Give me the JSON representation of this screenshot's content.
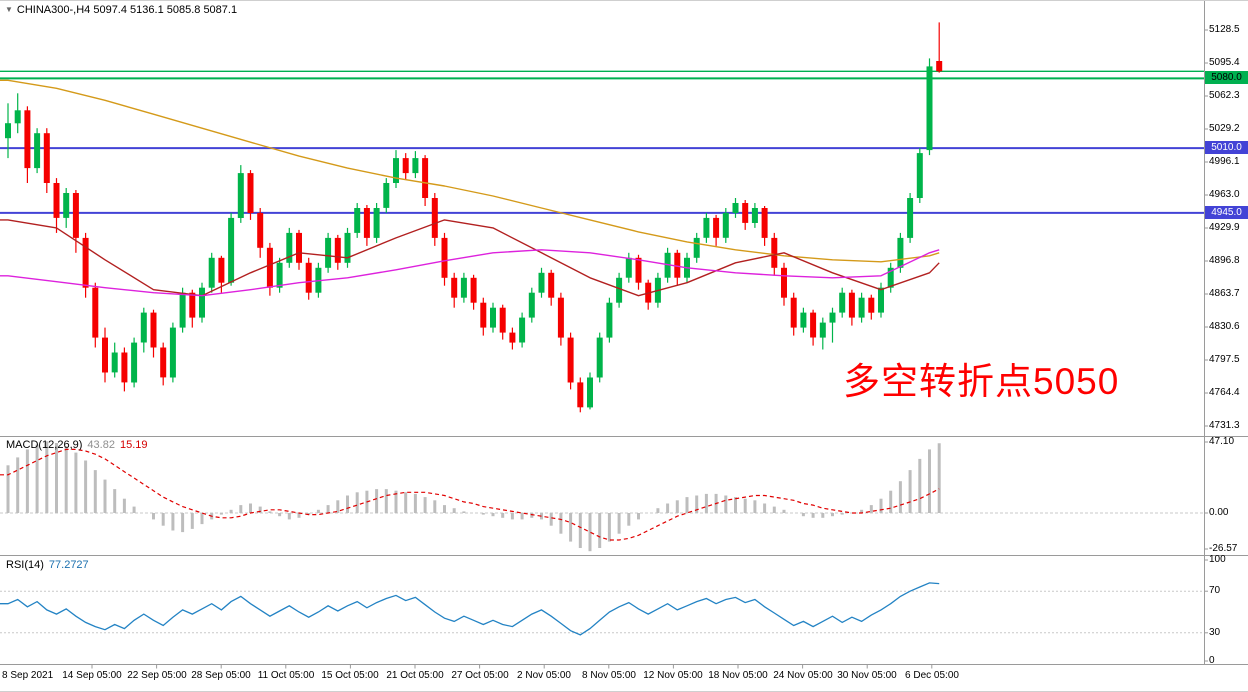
{
  "header": {
    "symbol_text": "CHINA300-,H4 5097.4 5136.1 5085.8 5087.1",
    "dropdown_glyph": "▼"
  },
  "annotation": {
    "text": "多空转折点5050",
    "color": "#ff0000"
  },
  "colors": {
    "up": "#00b44a",
    "down": "#f50000",
    "ma_long": "#d49a1a",
    "ma_mid": "#b22020",
    "ma_fast": "#dd22dd",
    "hline_green": "#00b050",
    "hline_blue": "#4343d6",
    "macd_hist": "#bdbdbd",
    "macd_signal": "#e00000",
    "rsi_line": "#2383c4",
    "grid": "#c8c8c8",
    "separator": "#9a9a9a"
  },
  "chart_data": [
    {
      "type": "candlestick",
      "symbol": "CHINA300-",
      "timeframe": "H4",
      "current_ohlc": {
        "open": 5097.4,
        "high": 5136.1,
        "low": 5085.8,
        "close": 5087.1
      },
      "y_axis_labels": [
        "5128.5",
        "5095.4",
        "5062.3",
        "5029.2",
        "4996.1",
        "4963.0",
        "4929.9",
        "4896.8",
        "4863.7",
        "4830.6",
        "4797.5",
        "4764.4",
        "4731.3"
      ],
      "x_axis_labels": [
        "8 Sep 2021",
        "14 Sep 05:00",
        "22 Sep 05:00",
        "28 Sep 05:00",
        "11 Oct 05:00",
        "15 Oct 05:00",
        "21 Oct 05:00",
        "27 Oct 05:00",
        "2 Nov 05:00",
        "8 Nov 05:00",
        "12 Nov 05:00",
        "18 Nov 05:00",
        "24 Nov 05:00",
        "30 Nov 05:00",
        "6 Dec 05:00"
      ],
      "horizontal_lines": [
        {
          "price": 5087.1,
          "color_key": "hline_green",
          "width": 1.4,
          "label": ""
        },
        {
          "price": 5080.0,
          "color_key": "hline_green",
          "width": 2,
          "label": "5080.0"
        },
        {
          "price": 5010.0,
          "color_key": "hline_blue",
          "width": 2,
          "label": "5010.0"
        },
        {
          "price": 4945.0,
          "color_key": "hline_blue",
          "width": 2,
          "label": "4945.0"
        }
      ],
      "candles": [
        [
          5020,
          5055,
          5000,
          5035
        ],
        [
          5035,
          5065,
          5025,
          5048
        ],
        [
          5048,
          5052,
          4975,
          4990
        ],
        [
          4990,
          5030,
          4985,
          5025
        ],
        [
          5025,
          5030,
          4965,
          4975
        ],
        [
          4975,
          4980,
          4925,
          4940
        ],
        [
          4940,
          4970,
          4930,
          4965
        ],
        [
          4965,
          4968,
          4905,
          4920
        ],
        [
          4920,
          4925,
          4860,
          4870
        ],
        [
          4870,
          4875,
          4810,
          4820
        ],
        [
          4820,
          4830,
          4775,
          4785
        ],
        [
          4785,
          4815,
          4780,
          4805
        ],
        [
          4805,
          4810,
          4766,
          4775
        ],
        [
          4775,
          4820,
          4770,
          4815
        ],
        [
          4815,
          4850,
          4805,
          4845
        ],
        [
          4845,
          4848,
          4800,
          4810
        ],
        [
          4810,
          4815,
          4772,
          4780
        ],
        [
          4780,
          4835,
          4775,
          4830
        ],
        [
          4830,
          4870,
          4825,
          4865
        ],
        [
          4865,
          4868,
          4830,
          4840
        ],
        [
          4840,
          4875,
          4835,
          4870
        ],
        [
          4870,
          4905,
          4865,
          4900
        ],
        [
          4900,
          4902,
          4865,
          4875
        ],
        [
          4875,
          4945,
          4872,
          4940
        ],
        [
          4940,
          4993,
          4935,
          4985
        ],
        [
          4985,
          4988,
          4938,
          4945
        ],
        [
          4945,
          4950,
          4900,
          4910
        ],
        [
          4910,
          4915,
          4862,
          4870
        ],
        [
          4870,
          4900,
          4865,
          4895
        ],
        [
          4895,
          4930,
          4890,
          4925
        ],
        [
          4925,
          4928,
          4888,
          4895
        ],
        [
          4895,
          4900,
          4858,
          4865
        ],
        [
          4865,
          4895,
          4860,
          4890
        ],
        [
          4890,
          4925,
          4885,
          4920
        ],
        [
          4920,
          4923,
          4888,
          4895
        ],
        [
          4895,
          4930,
          4890,
          4925
        ],
        [
          4925,
          4955,
          4920,
          4950
        ],
        [
          4950,
          4953,
          4912,
          4920
        ],
        [
          4920,
          4955,
          4915,
          4950
        ],
        [
          4950,
          4980,
          4945,
          4975
        ],
        [
          4975,
          5008,
          4970,
          5000
        ],
        [
          5000,
          5005,
          4978,
          4985
        ],
        [
          4985,
          5007,
          4980,
          5000
        ],
        [
          5000,
          5003,
          4952,
          4960
        ],
        [
          4960,
          4965,
          4912,
          4920
        ],
        [
          4920,
          4925,
          4872,
          4880
        ],
        [
          4880,
          4885,
          4850,
          4860
        ],
        [
          4860,
          4885,
          4855,
          4880
        ],
        [
          4880,
          4883,
          4848,
          4855
        ],
        [
          4855,
          4860,
          4822,
          4830
        ],
        [
          4830,
          4855,
          4825,
          4850
        ],
        [
          4850,
          4853,
          4818,
          4825
        ],
        [
          4825,
          4830,
          4808,
          4815
        ],
        [
          4815,
          4845,
          4810,
          4840
        ],
        [
          4840,
          4870,
          4835,
          4865
        ],
        [
          4865,
          4890,
          4860,
          4885
        ],
        [
          4885,
          4888,
          4852,
          4860
        ],
        [
          4860,
          4865,
          4812,
          4820
        ],
        [
          4820,
          4825,
          4768,
          4775
        ],
        [
          4775,
          4780,
          4745,
          4750
        ],
        [
          4750,
          4785,
          4748,
          4780
        ],
        [
          4780,
          4825,
          4775,
          4820
        ],
        [
          4820,
          4860,
          4815,
          4855
        ],
        [
          4855,
          4885,
          4850,
          4880
        ],
        [
          4880,
          4905,
          4875,
          4900
        ],
        [
          4900,
          4903,
          4868,
          4875
        ],
        [
          4875,
          4878,
          4848,
          4855
        ],
        [
          4855,
          4885,
          4850,
          4880
        ],
        [
          4880,
          4910,
          4875,
          4905
        ],
        [
          4905,
          4908,
          4872,
          4880
        ],
        [
          4880,
          4905,
          4875,
          4900
        ],
        [
          4900,
          4925,
          4895,
          4920
        ],
        [
          4920,
          4945,
          4915,
          4940
        ],
        [
          4940,
          4943,
          4912,
          4920
        ],
        [
          4920,
          4950,
          4915,
          4945
        ],
        [
          4945,
          4960,
          4940,
          4955
        ],
        [
          4955,
          4958,
          4928,
          4935
        ],
        [
          4935,
          4955,
          4930,
          4950
        ],
        [
          4950,
          4952,
          4912,
          4920
        ],
        [
          4920,
          4925,
          4882,
          4890
        ],
        [
          4890,
          4895,
          4852,
          4860
        ],
        [
          4860,
          4865,
          4822,
          4830
        ],
        [
          4830,
          4850,
          4825,
          4845
        ],
        [
          4845,
          4848,
          4812,
          4820
        ],
        [
          4820,
          4840,
          4808,
          4835
        ],
        [
          4835,
          4850,
          4815,
          4845
        ],
        [
          4845,
          4870,
          4840,
          4865
        ],
        [
          4865,
          4868,
          4832,
          4840
        ],
        [
          4840,
          4865,
          4835,
          4860
        ],
        [
          4860,
          4863,
          4838,
          4845
        ],
        [
          4845,
          4875,
          4840,
          4870
        ],
        [
          4870,
          4895,
          4865,
          4890
        ],
        [
          4890,
          4925,
          4885,
          4920
        ],
        [
          4920,
          4965,
          4915,
          4960
        ],
        [
          4960,
          5010,
          4955,
          5005
        ],
        [
          5008,
          5100,
          5003,
          5092
        ],
        [
          5097.4,
          5136.1,
          5085.8,
          5087.1
        ]
      ],
      "moving_averages": [
        {
          "name": "ma-long-orange",
          "color_key": "ma_long",
          "sample_step": 5,
          "values": [
            5078,
            5070,
            5058,
            5044,
            5030,
            5016,
            5002,
            4990,
            4980,
            4972,
            4962,
            4950,
            4938,
            4926,
            4916,
            4908,
            4902,
            4898,
            4896,
            4902,
            4905
          ]
        },
        {
          "name": "ma-mid-darkred",
          "color_key": "ma_mid",
          "sample_step": 5,
          "values": [
            4938,
            4930,
            4898,
            4868,
            4862,
            4885,
            4905,
            4900,
            4920,
            4938,
            4930,
            4905,
            4880,
            4862,
            4875,
            4895,
            4905,
            4885,
            4868,
            4885,
            4895
          ]
        },
        {
          "name": "ma-fast-magenta",
          "color_key": "ma_fast",
          "sample_step": 5,
          "values": [
            4882,
            4876,
            4870,
            4865,
            4862,
            4868,
            4875,
            4880,
            4888,
            4897,
            4905,
            4908,
            4905,
            4898,
            4890,
            4885,
            4882,
            4880,
            4882,
            4905,
            4908
          ]
        }
      ]
    },
    {
      "type": "macd_histogram",
      "label": "MACD(12,26,9)",
      "current_macd": "43.82",
      "current_signal": "15.19",
      "axis_labels": [
        "47.10",
        "0.00",
        "-26.57"
      ],
      "histogram": [
        30,
        35,
        40,
        43,
        45,
        44,
        42,
        38,
        33,
        27,
        21,
        15,
        9,
        4,
        0,
        -4,
        -8,
        -11,
        -12,
        -10,
        -7,
        -4,
        -1,
        2,
        5,
        6,
        4,
        1,
        -2,
        -4,
        -3,
        -1,
        2,
        5,
        8,
        11,
        13,
        14,
        15,
        15,
        14,
        13,
        12,
        10,
        8,
        5,
        3,
        1,
        0,
        -1,
        -2,
        -3,
        -4,
        -4,
        -3,
        -4,
        -8,
        -13,
        -18,
        -22,
        -24,
        -22,
        -18,
        -13,
        -8,
        -4,
        0,
        3,
        6,
        8,
        10,
        11,
        12,
        12,
        11,
        10,
        9,
        8,
        6,
        4,
        2,
        0,
        -2,
        -3,
        -3,
        -2,
        -1,
        0,
        2,
        5,
        9,
        14,
        20,
        27,
        34,
        40,
        43.82
      ],
      "signal": [
        24,
        27,
        30,
        33,
        36,
        38,
        40,
        40,
        39,
        37,
        34,
        30,
        26,
        22,
        18,
        14,
        10,
        7,
        4,
        2,
        0,
        -2,
        -3,
        -3,
        -2,
        0,
        1,
        2,
        2,
        1,
        0,
        -1,
        -1,
        0,
        1,
        3,
        5,
        7,
        9,
        11,
        12,
        13,
        13,
        13,
        12,
        11,
        9,
        7,
        6,
        4,
        3,
        2,
        1,
        0,
        -1,
        -2,
        -3,
        -4,
        -6,
        -9,
        -12,
        -15,
        -17,
        -17,
        -16,
        -14,
        -11,
        -8,
        -5,
        -2,
        0,
        2,
        4,
        6,
        8,
        9,
        10,
        11,
        11,
        10,
        9,
        8,
        6,
        5,
        3,
        2,
        1,
        0,
        0,
        1,
        2,
        3,
        5,
        7,
        9,
        12,
        15.19
      ]
    },
    {
      "type": "rsi_line",
      "label": "RSI(14)",
      "current": "77.2727",
      "axis_labels": [
        "100",
        "70",
        "30",
        "0"
      ],
      "levels": [
        70,
        30
      ],
      "values": [
        58,
        62,
        55,
        60,
        52,
        48,
        53,
        46,
        40,
        36,
        33,
        38,
        34,
        42,
        48,
        42,
        37,
        45,
        52,
        48,
        53,
        58,
        52,
        60,
        65,
        58,
        52,
        46,
        51,
        56,
        50,
        45,
        50,
        56,
        51,
        56,
        60,
        54,
        59,
        63,
        66,
        61,
        64,
        57,
        50,
        44,
        41,
        46,
        42,
        38,
        42,
        38,
        36,
        42,
        48,
        52,
        46,
        39,
        32,
        28,
        34,
        42,
        50,
        55,
        59,
        53,
        48,
        53,
        58,
        52,
        56,
        60,
        63,
        58,
        62,
        64,
        59,
        62,
        55,
        49,
        43,
        37,
        41,
        36,
        41,
        46,
        40,
        45,
        41,
        47,
        52,
        58,
        65,
        70,
        74,
        78,
        77.27
      ]
    }
  ]
}
